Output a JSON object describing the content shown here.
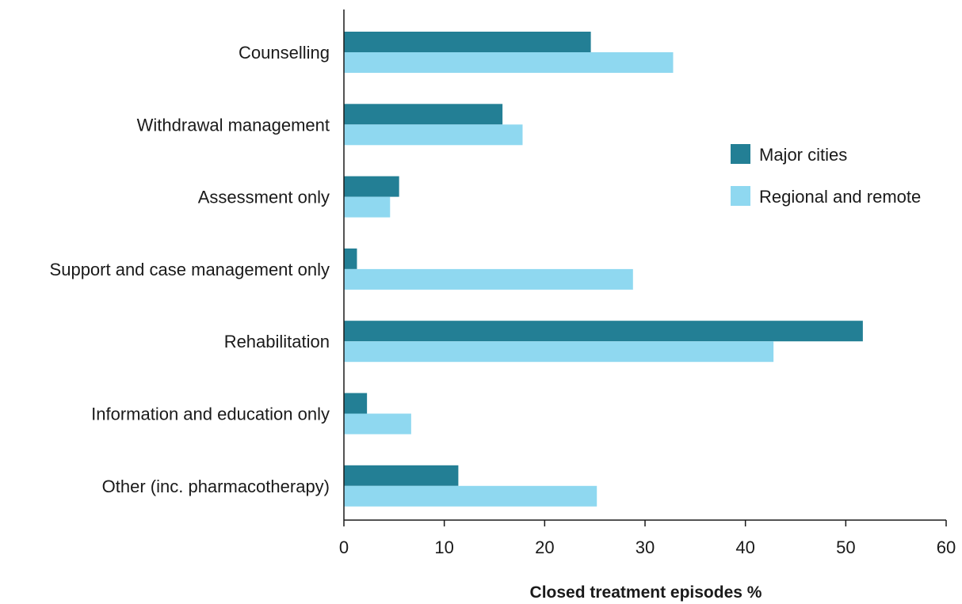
{
  "chart_data": {
    "type": "bar",
    "orientation": "horizontal",
    "categories": [
      "Counselling",
      "Withdrawal management",
      "Assessment only",
      "Support and case management only",
      "Rehabilitation",
      "Information and education only",
      "Other (inc. pharmacotherapy)"
    ],
    "series": [
      {
        "name": "Major cities",
        "color": "#237f95",
        "values": [
          24.6,
          15.8,
          5.5,
          1.3,
          51.7,
          2.3,
          11.4
        ]
      },
      {
        "name": "Regional and remote",
        "color": "#8fd8f0",
        "values": [
          32.8,
          17.8,
          4.6,
          28.8,
          42.8,
          6.7,
          25.2
        ]
      }
    ],
    "xlabel": "Closed treatment episodes %",
    "xlim": [
      0,
      60
    ],
    "xticks": [
      0,
      10,
      20,
      30,
      40,
      50,
      60
    ],
    "grid": false,
    "legend_position": "right"
  }
}
